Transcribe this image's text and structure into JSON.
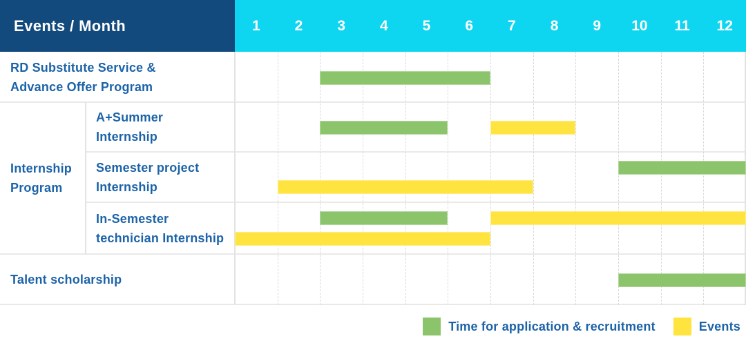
{
  "header": {
    "title": "Events / Month",
    "months": [
      "1",
      "2",
      "3",
      "4",
      "5",
      "6",
      "7",
      "8",
      "9",
      "10",
      "11",
      "12"
    ]
  },
  "legend": {
    "items": [
      {
        "key": "application-recruitment",
        "label": "Time for application & recruitment",
        "color_key": "green"
      },
      {
        "key": "events",
        "label": "Events",
        "color_key": "yellow"
      }
    ]
  },
  "colors": {
    "header_bg": "#134A7D",
    "months_bg": "#0FD6F0",
    "label_text": "#1C63A8",
    "green": "#8BC46B",
    "yellow": "#FFE43F",
    "grid_h": "#E9E9E9",
    "grid_v": "#E3E3E3",
    "grid_dash": "#D9D9D9"
  },
  "chart_data": {
    "type": "gantt",
    "title": "Events / Month",
    "x_axis": {
      "label": "Month",
      "ticks": [
        1,
        2,
        3,
        4,
        5,
        6,
        7,
        8,
        9,
        10,
        11,
        12
      ],
      "range": [
        1,
        12
      ]
    },
    "legend_position": "bottom-right",
    "legend": [
      {
        "name": "Time for application & recruitment",
        "color": "#8BC46B"
      },
      {
        "name": "Events",
        "color": "#FFE43F"
      }
    ],
    "rows": [
      {
        "group": "",
        "label": "RD Substitute Service & Advance Offer Program",
        "label_lines": [
          "RD Substitute Service &",
          "Advance Offer Program"
        ],
        "num_lines": 1,
        "bars": [
          {
            "series": "Time for application & recruitment",
            "color_key": "green",
            "start_month": 3,
            "end_month": 6,
            "line": 0
          }
        ]
      },
      {
        "group": "Internship Program",
        "group_lines": [
          "Internship",
          "Program"
        ],
        "group_span": 3,
        "label": "A+Summer Internship",
        "label_lines": [
          "A+Summer",
          "Internship"
        ],
        "num_lines": 1,
        "bars": [
          {
            "series": "Time for application & recruitment",
            "color_key": "green",
            "start_month": 3,
            "end_month": 5,
            "line": 0
          },
          {
            "series": "Events",
            "color_key": "yellow",
            "start_month": 7,
            "end_month": 8,
            "line": 0
          }
        ]
      },
      {
        "group": "Internship Program",
        "label": "Semester project Internship",
        "label_lines": [
          "Semester project",
          "Internship"
        ],
        "num_lines": 2,
        "bars": [
          {
            "series": "Time for application & recruitment",
            "color_key": "green",
            "start_month": 10,
            "end_month": 12,
            "line": 0
          },
          {
            "series": "Events",
            "color_key": "yellow",
            "start_month": 2,
            "end_month": 7,
            "line": 1
          }
        ]
      },
      {
        "group": "Internship Program",
        "label": "In-Semester technician Internship",
        "label_lines": [
          "In-Semester",
          "technician Internship"
        ],
        "num_lines": 2,
        "bars": [
          {
            "series": "Time for application & recruitment",
            "color_key": "green",
            "start_month": 3,
            "end_month": 5,
            "line": 0
          },
          {
            "series": "Events",
            "color_key": "yellow",
            "start_month": 7,
            "end_month": 12,
            "line": 0
          },
          {
            "series": "Events",
            "color_key": "yellow",
            "start_month": 1,
            "end_month": 6,
            "line": 1
          }
        ]
      },
      {
        "group": "",
        "label": "Talent scholarship",
        "label_lines": [
          "Talent scholarship"
        ],
        "num_lines": 1,
        "bars": [
          {
            "series": "Time for application & recruitment",
            "color_key": "green",
            "start_month": 10,
            "end_month": 12,
            "line": 0
          }
        ]
      }
    ]
  }
}
